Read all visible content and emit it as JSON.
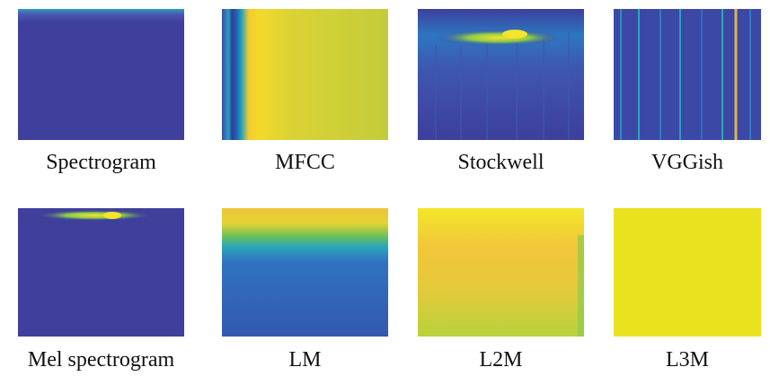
{
  "panels": [
    {
      "label": "Spectrogram"
    },
    {
      "label": "MFCC"
    },
    {
      "label": "Stockwell"
    },
    {
      "label": "VGGish"
    },
    {
      "label": "Mel spectrogram"
    },
    {
      "label": "LM"
    },
    {
      "label": "L2M"
    },
    {
      "label": "L3M"
    }
  ]
}
